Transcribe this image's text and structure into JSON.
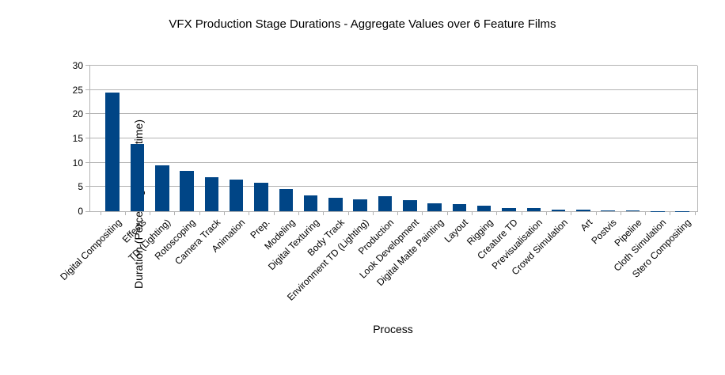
{
  "chart_data": {
    "type": "bar",
    "title": "VFX Production Stage Durations - Aggregate Values over 6 Feature Films",
    "xlabel": "Process",
    "ylabel": "Duration (Percentage of total time)",
    "ylim": [
      0,
      30
    ],
    "ytick_step": 5,
    "yticks": [
      0,
      5,
      10,
      15,
      20,
      25,
      30
    ],
    "grid": true,
    "legend": "none",
    "bar_color": "#004586",
    "axis_color": "#b3b3b3",
    "categories": [
      "Digital Compositing",
      "Effects",
      "TD (Lighting)",
      "Rotoscoping",
      "Camera Track",
      "Animation",
      "Prep.",
      "Modeling",
      "Digital Texturing",
      "Body Track",
      "Environment TD (Lighting)",
      "Production",
      "Look Development",
      "Digital Matte Painting",
      "Layout",
      "Rigging",
      "Creature TD",
      "Previsualisation",
      "Crowd Simulation",
      "Art",
      "Postvis",
      "Pipeline",
      "Cloth Simulation",
      "Stero Compositing"
    ],
    "values": [
      24.5,
      13.9,
      9.5,
      8.3,
      7.0,
      6.6,
      5.8,
      4.6,
      3.3,
      2.7,
      2.5,
      3.1,
      2.3,
      1.7,
      1.4,
      1.2,
      0.6,
      0.6,
      0.4,
      0.25,
      0.1,
      0.15,
      0.05,
      0.02
    ]
  }
}
